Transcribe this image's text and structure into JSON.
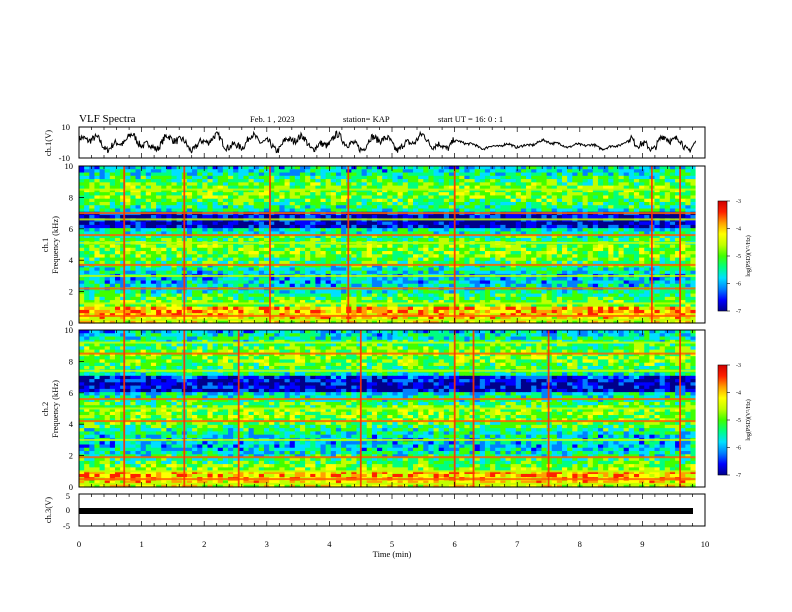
{
  "header": {
    "title": "VLF Spectra",
    "date": "Feb. 1 , 2023",
    "station": "station= KAP",
    "start": "start UT =  16: 0  : 1"
  },
  "colors": {
    "ink": "#000000",
    "colormap": [
      "#00008b",
      "#0000ff",
      "#0080ff",
      "#00e0ff",
      "#00ff80",
      "#40ff00",
      "#c0ff00",
      "#ffff00",
      "#ffa000",
      "#ff2000",
      "#d00000"
    ]
  },
  "chart_data": [
    {
      "type": "line",
      "ylabel": "ch.1(V)",
      "ylim": [
        -10,
        10
      ],
      "ytick_labels": [
        "10",
        "-10"
      ],
      "x_range_min": [
        0,
        9.85
      ],
      "trace": "voltage waveform, noisy oscillation roughly -6 to +6 V"
    },
    {
      "type": "heatmap",
      "ylabel_line1": "ch.1",
      "ylabel_line2": "Frequency (kHz)",
      "ylim": [
        0,
        10
      ],
      "ytick_labels": [
        "10",
        "8",
        "6",
        "4",
        "2",
        "0"
      ],
      "colorbar": {
        "label": "log(PSD)(V²/Hz)",
        "ticks": [
          "-3",
          "-4",
          "-5",
          "-6",
          "-7"
        ],
        "range": [
          -7,
          -3
        ]
      },
      "x_range_min": [
        0,
        9.85
      ],
      "bright_lines_min": [
        0.72,
        1.68,
        3.05,
        4.3,
        6.0,
        9.15,
        9.6
      ],
      "band_lines_khz": [
        0.2,
        0.45,
        1.25,
        2.2,
        3.0,
        3.7,
        5.1,
        5.6,
        6.6,
        7.0,
        8.5
      ]
    },
    {
      "type": "heatmap",
      "ylabel_line1": "ch.2",
      "ylabel_line2": "Frequency (kHz)",
      "ylim": [
        0,
        10
      ],
      "ytick_labels": [
        "10",
        "8",
        "6",
        "4",
        "2",
        "0"
      ],
      "colorbar": {
        "label": "log(PSD)(V²/Hz)",
        "ticks": [
          "-3",
          "-4",
          "-5",
          "-6",
          "-7"
        ],
        "range": [
          -7,
          -3
        ]
      },
      "x_range_min": [
        0,
        9.85
      ],
      "bright_lines_min": [
        0.72,
        1.68,
        2.55,
        4.5,
        6.0,
        6.3,
        7.5,
        9.6
      ],
      "band_lines_khz": [
        0.2,
        0.5,
        1.0,
        1.9,
        3.0,
        4.2,
        5.0,
        5.6,
        7.4,
        8.5,
        9.2
      ]
    },
    {
      "type": "line",
      "ylabel": "ch.3(V)",
      "ylim": [
        -5,
        5
      ],
      "ytick_labels": [
        "5",
        "0",
        "-5"
      ],
      "x_range_min": [
        0,
        9.85
      ],
      "trace": "thick flat line near -1 V"
    }
  ],
  "xaxis": {
    "label": "Time  (min)",
    "range": [
      0,
      10
    ],
    "ticks": [
      "0",
      "1",
      "2",
      "3",
      "4",
      "5",
      "6",
      "7",
      "8",
      "9",
      "10"
    ]
  }
}
